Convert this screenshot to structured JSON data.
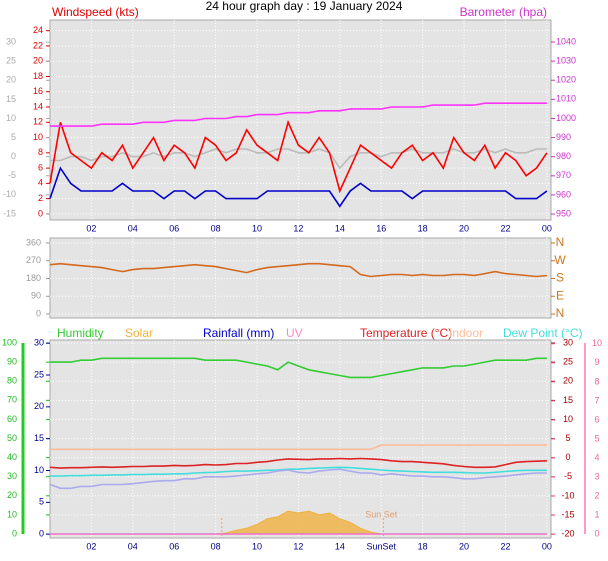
{
  "title": "24 hour graph day : 19 January 2024",
  "chart_data": [
    {
      "type": "line",
      "ylabel": "Windspeed (kts)",
      "ylabel_color": "#dd0000",
      "y2label": "Barometer (hpa)",
      "y2label_color": "#cc33cc",
      "xlim": [
        0,
        24.2
      ],
      "xticks": [
        {
          "value": 2,
          "label": "02"
        },
        {
          "value": 4,
          "label": "04"
        },
        {
          "value": 6,
          "label": "06"
        },
        {
          "value": 8,
          "label": "08"
        },
        10,
        12,
        14,
        16,
        18,
        20,
        22,
        {
          "value": 24,
          "label": "00"
        }
      ],
      "ylim": [
        -0.8,
        25.4
      ],
      "yticks": [
        0,
        2,
        4,
        6,
        8,
        10,
        12,
        14,
        16,
        18,
        20,
        22,
        24
      ],
      "ycolor": "#dd0000",
      "y2lim": [
        946.9,
        1051.5
      ],
      "y2ticks": [
        950,
        960,
        970,
        980,
        990,
        1000,
        1010,
        1020,
        1030,
        1040
      ],
      "y2color": "#cc33cc",
      "y3lim": [
        -16.6,
        35.8
      ],
      "y3ticks": [
        -15,
        -10,
        -5,
        0,
        5,
        10,
        15,
        20,
        25,
        30
      ],
      "y3color": "#aaaaaa",
      "grid": true,
      "x": [
        0,
        0.5,
        1,
        1.5,
        2,
        2.5,
        3,
        3.5,
        4,
        4.5,
        5,
        5.5,
        6,
        6.5,
        7,
        7.5,
        8,
        8.5,
        9,
        9.5,
        10,
        10.5,
        11,
        11.5,
        12,
        12.5,
        13,
        13.5,
        14,
        14.5,
        15,
        15.5,
        16,
        16.5,
        17,
        17.5,
        18,
        18.5,
        19,
        19.5,
        20,
        20.5,
        21,
        21.5,
        22,
        22.5,
        23,
        23.5,
        24
      ],
      "series": [
        {
          "color": "#bbbbbb",
          "axis": "y3",
          "values": [
            -1,
            -1,
            0,
            0,
            -1,
            0,
            0,
            1,
            0,
            0,
            1,
            0,
            1,
            1,
            0,
            1,
            2,
            1,
            2,
            2,
            1,
            1,
            2,
            2,
            1,
            1,
            2,
            1,
            -3,
            0,
            1,
            1,
            0,
            1,
            1,
            2,
            1,
            1,
            1,
            2,
            1,
            1,
            2,
            1,
            2,
            1,
            1,
            2,
            2
          ]
        },
        {
          "name": "Windspeed (kts)",
          "color": "#ff0000",
          "axis": "y",
          "values": [
            4,
            12,
            8,
            7,
            6,
            8,
            7,
            9,
            6,
            8,
            10,
            7,
            9,
            8,
            6,
            10,
            9,
            7,
            8,
            11,
            9,
            8,
            7,
            12,
            9,
            8,
            10,
            8,
            3,
            6,
            9,
            8,
            7,
            6,
            8,
            9,
            7,
            8,
            6,
            10,
            8,
            7,
            9,
            6,
            8,
            7,
            5,
            6,
            8
          ]
        },
        {
          "color": "#0000cc",
          "axis": "y",
          "values": [
            2,
            6,
            4,
            3,
            3,
            3,
            3,
            4,
            3,
            3,
            3,
            2,
            3,
            3,
            2,
            3,
            3,
            2,
            2,
            2,
            2,
            3,
            3,
            3,
            3,
            3,
            3,
            3,
            1,
            3,
            4,
            3,
            3,
            3,
            3,
            2,
            3,
            3,
            3,
            3,
            3,
            3,
            3,
            3,
            3,
            2,
            2,
            2,
            3
          ]
        },
        {
          "name": "Barometer (hpa)",
          "color": "#ff33ff",
          "axis": "y2",
          "values": [
            996,
            996,
            996,
            996,
            996,
            997,
            997,
            997,
            997,
            998,
            998,
            998,
            999,
            999,
            999,
            1000,
            1000,
            1000,
            1001,
            1001,
            1002,
            1002,
            1002,
            1003,
            1003,
            1003,
            1004,
            1004,
            1004,
            1005,
            1005,
            1005,
            1005,
            1006,
            1006,
            1006,
            1006,
            1007,
            1007,
            1007,
            1007,
            1007,
            1008,
            1008,
            1008,
            1008,
            1008,
            1008,
            1008
          ]
        }
      ]
    },
    {
      "type": "line",
      "xlim": [
        0,
        24.2
      ],
      "ylim": [
        -20,
        385
      ],
      "yticks": [
        0,
        90,
        180,
        270,
        360
      ],
      "ycolor": "#999999",
      "y2lim": [
        -20,
        385
      ],
      "y2ticks": [
        {
          "value": 0,
          "label": "N"
        },
        {
          "value": 90,
          "label": "E"
        },
        {
          "value": 180,
          "label": "S"
        },
        {
          "value": 270,
          "label": "W"
        },
        {
          "value": 360,
          "label": "N"
        }
      ],
      "y2color": "#cc7722",
      "grid": true,
      "x": [
        0,
        0.5,
        1,
        1.5,
        2,
        2.5,
        3,
        3.5,
        4,
        4.5,
        5,
        5.5,
        6,
        6.5,
        7,
        7.5,
        8,
        8.5,
        9,
        9.5,
        10,
        10.5,
        11,
        11.5,
        12,
        12.5,
        13,
        13.5,
        14,
        14.5,
        15,
        15.5,
        16,
        16.5,
        17,
        17.5,
        18,
        18.5,
        19,
        19.5,
        20,
        20.5,
        21,
        21.5,
        22,
        22.5,
        23,
        23.5,
        24
      ],
      "series": [
        {
          "color": "#d2691e",
          "axis": "y",
          "values": [
            250,
            255,
            250,
            245,
            240,
            235,
            225,
            215,
            225,
            230,
            230,
            235,
            240,
            245,
            250,
            245,
            240,
            230,
            220,
            210,
            225,
            235,
            240,
            245,
            250,
            255,
            255,
            250,
            245,
            240,
            200,
            190,
            195,
            200,
            200,
            195,
            200,
            195,
            195,
            200,
            200,
            195,
            205,
            215,
            205,
            200,
            195,
            190,
            195
          ]
        }
      ]
    },
    {
      "type": "line",
      "xlim": [
        0,
        24.2
      ],
      "xticks": [
        {
          "value": 2,
          "label": "02"
        },
        {
          "value": 4,
          "label": "04"
        },
        {
          "value": 6,
          "label": "06"
        },
        {
          "value": 8,
          "label": "08"
        },
        10,
        12,
        14,
        {
          "value": 16,
          "label": "SunSet"
        },
        18,
        20,
        22,
        {
          "value": 24,
          "label": "00"
        }
      ],
      "ylim": [
        -2.1,
        101.6
      ],
      "yticks": [
        0,
        10,
        20,
        30,
        40,
        50,
        60,
        70,
        80,
        90,
        100
      ],
      "ycolor": "#22bb22",
      "y2lim": [
        -21,
        30.8
      ],
      "y2ticks": [
        -20,
        -15,
        -10,
        -5,
        0,
        5,
        10,
        15,
        20,
        25,
        30
      ],
      "y2color": "#aa0000",
      "y3lim": [
        -0.6,
        30.5
      ],
      "y3ticks": [
        0,
        5,
        10,
        15,
        20,
        25,
        30
      ],
      "y3color": "#000099",
      "y4lim": [
        -0.2,
        10.2
      ],
      "y4ticks": [
        0,
        1,
        2,
        3,
        4,
        5,
        6,
        7,
        8,
        9,
        10
      ],
      "y4color": "#ee6699",
      "grid": true,
      "sunrise": 8.3,
      "sunset": 16.1,
      "sunset_label": "Sun Set",
      "x": [
        0,
        0.5,
        1,
        1.5,
        2,
        2.5,
        3,
        3.5,
        4,
        4.5,
        5,
        5.5,
        6,
        6.5,
        7,
        7.5,
        8,
        8.5,
        9,
        9.5,
        10,
        10.5,
        11,
        11.5,
        12,
        12.5,
        13,
        13.5,
        14,
        14.5,
        15,
        15.5,
        16,
        16.5,
        17,
        17.5,
        18,
        18.5,
        19,
        19.5,
        20,
        20.5,
        21,
        21.5,
        22,
        22.5,
        23,
        23.5,
        24
      ],
      "series": [
        {
          "name": "Humidity",
          "color": "#33cc33",
          "axis": "y",
          "values": [
            90,
            90,
            90,
            91,
            91,
            92,
            92,
            92,
            92,
            92,
            92,
            92,
            92,
            92,
            92,
            91,
            91,
            91,
            91,
            90,
            89,
            88,
            86,
            90,
            88,
            86,
            85,
            84,
            83,
            82,
            82,
            82,
            83,
            84,
            85,
            86,
            87,
            87,
            87,
            88,
            88,
            89,
            90,
            91,
            91,
            91,
            91,
            92,
            92
          ]
        },
        {
          "name": "Solar",
          "color": "#f0b040",
          "axis": "y",
          "area": true,
          "values": [
            0,
            0,
            0,
            0,
            0,
            0,
            0,
            0,
            0,
            0,
            0,
            0,
            0,
            0,
            0,
            0,
            0,
            0.5,
            2,
            3,
            5,
            8,
            9,
            12,
            11,
            12,
            10,
            11,
            8,
            6,
            3,
            1,
            0,
            0,
            0,
            0,
            0,
            0,
            0,
            0,
            0,
            0,
            0,
            0,
            0,
            0,
            0,
            0,
            0
          ]
        },
        {
          "name": "Rainfall (mm)",
          "color": "#0000cc",
          "axis": "y3",
          "values": [
            0,
            0,
            0,
            0,
            0,
            0,
            0,
            0,
            0,
            0,
            0,
            0,
            0,
            0,
            0,
            0,
            0,
            0,
            0,
            0,
            0,
            0,
            0,
            0,
            0,
            0,
            0,
            0,
            0,
            0,
            0,
            0,
            0,
            0,
            0,
            0,
            0,
            0,
            0,
            0,
            0,
            0,
            0,
            0,
            0,
            0,
            0,
            0,
            0
          ]
        },
        {
          "name": "UV",
          "color": "#ff88cc",
          "axis": "y4",
          "values": [
            0,
            0,
            0,
            0,
            0,
            0,
            0,
            0,
            0,
            0,
            0,
            0,
            0,
            0,
            0,
            0,
            0,
            0,
            0,
            0,
            0,
            0,
            0,
            0,
            0,
            0,
            0,
            0,
            0,
            0,
            0,
            0,
            0,
            0,
            0,
            0,
            0,
            0,
            0,
            0,
            0,
            0,
            0,
            0,
            0,
            0,
            0,
            0,
            0
          ]
        },
        {
          "name": "Temperature (°C)",
          "color": "#dd2222",
          "axis": "y2",
          "values": [
            -2.5,
            -2.7,
            -2.6,
            -2.6,
            -2.5,
            -2.4,
            -2.5,
            -2.4,
            -2.3,
            -2.3,
            -2.2,
            -2.2,
            -2.0,
            -2.1,
            -2.0,
            -1.8,
            -1.9,
            -1.8,
            -1.5,
            -1.5,
            -1.2,
            -1.0,
            -0.6,
            -0.3,
            -0.4,
            -0.5,
            -0.3,
            -0.3,
            -0.2,
            -0.3,
            -0.2,
            -0.3,
            -0.5,
            -0.8,
            -1.0,
            -1.0,
            -1.2,
            -1.4,
            -1.6,
            -2.0,
            -2.3,
            -2.5,
            -2.5,
            -2.4,
            -1.8,
            -1.2,
            -1.0,
            -0.9,
            -0.8
          ]
        },
        {
          "name": "Indoor",
          "color": "#ffbb99",
          "axis": "y2",
          "values": [
            2.2,
            2.2,
            2.2,
            2.2,
            2.2,
            2.2,
            2.2,
            2.2,
            2.2,
            2.2,
            2.2,
            2.2,
            2.2,
            2.2,
            2.2,
            2.2,
            2.2,
            2.2,
            2.2,
            2.2,
            2.2,
            2.2,
            2.2,
            2.2,
            2.2,
            2.2,
            2.2,
            2.2,
            2.2,
            2.2,
            2.2,
            2.2,
            3.3,
            3.3,
            3.3,
            3.3,
            3.3,
            3.3,
            3.3,
            3.3,
            3.3,
            3.3,
            3.3,
            3.3,
            3.3,
            3.3,
            3.3,
            3.3,
            3.3
          ]
        },
        {
          "name": "Dew Point (°C)",
          "color": "#44dddd",
          "axis": "y2",
          "values": [
            -4.8,
            -4.8,
            -4.7,
            -4.7,
            -4.6,
            -4.6,
            -4.5,
            -4.5,
            -4.4,
            -4.4,
            -4.3,
            -4.3,
            -4.2,
            -4.2,
            -4.0,
            -3.9,
            -3.8,
            -3.6,
            -3.5,
            -3.5,
            -3.4,
            -3.3,
            -3.2,
            -3.0,
            -3.0,
            -2.8,
            -2.7,
            -2.6,
            -2.5,
            -2.6,
            -2.8,
            -3.0,
            -3.2,
            -3.4,
            -3.5,
            -3.6,
            -3.7,
            -3.8,
            -3.8,
            -3.8,
            -3.9,
            -4.0,
            -4.0,
            -3.8,
            -3.6,
            -3.4,
            -3.3,
            -3.3,
            -3.3
          ]
        },
        {
          "color": "#aaaaee",
          "axis": "y2",
          "values": [
            -7,
            -8,
            -8,
            -7.5,
            -7.5,
            -7,
            -7,
            -7,
            -6.8,
            -6.5,
            -6.2,
            -6,
            -6,
            -5.5,
            -5.5,
            -5,
            -5,
            -5,
            -4.8,
            -4.5,
            -4.2,
            -4,
            -3.5,
            -3.2,
            -3.8,
            -4,
            -3.5,
            -3.2,
            -3.0,
            -3.5,
            -4,
            -4,
            -4.5,
            -4.2,
            -4.5,
            -4.8,
            -4.8,
            -5,
            -5,
            -5.2,
            -5.5,
            -5.5,
            -5.2,
            -5,
            -4.8,
            -4.5,
            -4.2,
            -4,
            -4
          ]
        }
      ]
    }
  ]
}
